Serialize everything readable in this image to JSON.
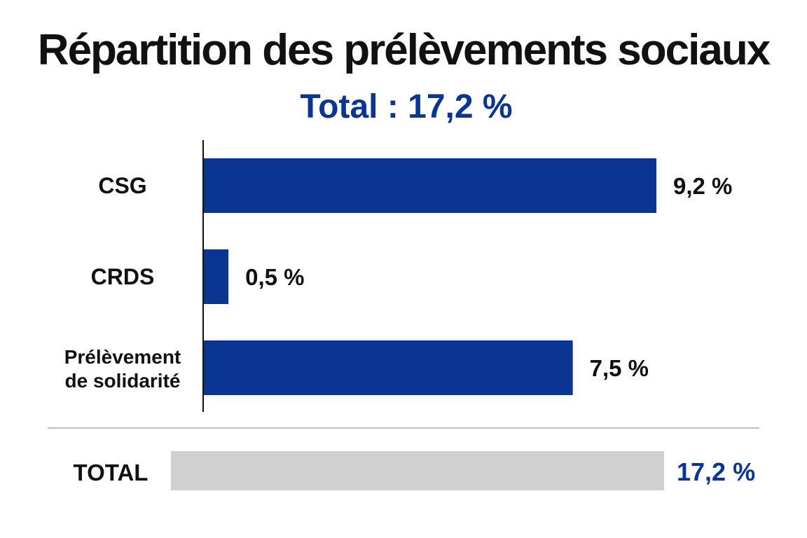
{
  "chart_data": {
    "type": "bar",
    "orientation": "horizontal",
    "title": "Répartition des prélèvements sociaux",
    "subtitle": "Total : 17,2 %",
    "categories": [
      [
        "CSG"
      ],
      [
        "CRDS"
      ],
      [
        "Prélèvement",
        "de solidarité"
      ]
    ],
    "values": [
      9.2,
      0.5,
      7.5
    ],
    "value_labels": [
      "9,2 %",
      "0,5 %",
      "7,5 %"
    ],
    "total": {
      "label": "TOTAL",
      "value": 17.2,
      "value_label": "17,2 %"
    },
    "xlim": [
      0,
      9.2
    ],
    "grid": false,
    "legend": "none",
    "colors": {
      "bar": "#0b3592",
      "total_bar": "#d0d0d0",
      "accent_text": "#0b3592",
      "axis": "#111111",
      "divider": "#bdbdbd"
    }
  }
}
